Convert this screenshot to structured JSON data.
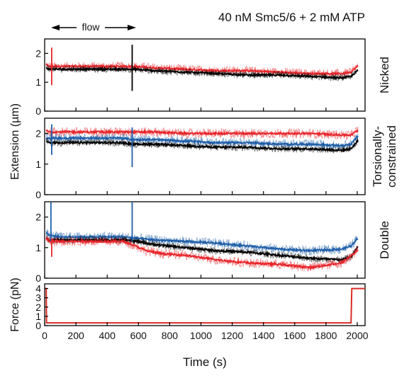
{
  "figure": {
    "title": "40 nM Smc5/6 + 2 mM ATP",
    "flow_label": "flow",
    "shared_ylabel": "Extension (µm)",
    "xlabel": "Time (s)",
    "colors": {
      "nicked": "#e8262b",
      "torsional": "#e8262b",
      "double": "#e8262b",
      "blue": "#1f5fa8",
      "black": "#000000",
      "force_line": "#d92b26",
      "axis": "#000000"
    }
  },
  "chart_data": [
    {
      "type": "line",
      "panel": "Nicked",
      "side_label": [
        "Nicked"
      ],
      "xlim": [
        0,
        2050
      ],
      "ylim": [
        0,
        2.5
      ],
      "yticks": [
        0,
        1,
        2
      ],
      "xticks": [
        0,
        200,
        400,
        600,
        800,
        1000,
        1200,
        1400,
        1600,
        1800,
        2000
      ],
      "series": [
        {
          "color": "red",
          "x": [
            10,
            30,
            100,
            300,
            500,
            560,
            700,
            900,
            1100,
            1300,
            1500,
            1700,
            1900,
            1960,
            2000
          ],
          "y": [
            1.6,
            1.55,
            1.55,
            1.55,
            1.55,
            1.55,
            1.5,
            1.45,
            1.4,
            1.4,
            1.35,
            1.3,
            1.3,
            1.35,
            1.55
          ]
        },
        {
          "color": "black",
          "x": [
            10,
            30,
            100,
            300,
            500,
            560,
            700,
            900,
            1100,
            1300,
            1500,
            1700,
            1900,
            1960,
            2000
          ],
          "y": [
            1.5,
            1.45,
            1.45,
            1.45,
            1.45,
            1.45,
            1.4,
            1.35,
            1.3,
            1.25,
            1.25,
            1.2,
            1.15,
            1.2,
            1.4
          ]
        }
      ],
      "spikes": [
        {
          "color": "red",
          "x": 45,
          "y0": 0.9,
          "y1": 2.2
        },
        {
          "color": "black",
          "x": 560,
          "y0": 0.7,
          "y1": 2.3
        }
      ]
    },
    {
      "type": "line",
      "panel": "Torsionally-constrained",
      "side_label": [
        "Torsionally-",
        "constrained"
      ],
      "xlim": [
        0,
        2050
      ],
      "ylim": [
        0,
        2.5
      ],
      "yticks": [
        0,
        1,
        2
      ],
      "xticks": [
        0,
        200,
        400,
        600,
        800,
        1000,
        1200,
        1400,
        1600,
        1800,
        2000
      ],
      "series": [
        {
          "color": "red",
          "x": [
            10,
            30,
            100,
            300,
            500,
            560,
            700,
            900,
            1100,
            1300,
            1500,
            1700,
            1900,
            1960,
            2000
          ],
          "y": [
            2.1,
            2.05,
            2.05,
            2.05,
            2.05,
            2.05,
            2.05,
            2.0,
            2.0,
            2.0,
            2.0,
            2.0,
            1.95,
            1.95,
            2.1
          ]
        },
        {
          "color": "blue",
          "x": [
            10,
            30,
            100,
            300,
            500,
            560,
            700,
            900,
            1100,
            1300,
            1500,
            1700,
            1900,
            1960,
            2000
          ],
          "y": [
            1.85,
            1.85,
            1.85,
            1.85,
            1.85,
            1.8,
            1.8,
            1.75,
            1.7,
            1.7,
            1.65,
            1.65,
            1.6,
            1.65,
            1.9
          ]
        },
        {
          "color": "black",
          "x": [
            10,
            30,
            100,
            300,
            500,
            560,
            700,
            900,
            1100,
            1300,
            1500,
            1700,
            1900,
            1960,
            2000
          ],
          "y": [
            1.75,
            1.7,
            1.7,
            1.7,
            1.7,
            1.65,
            1.65,
            1.6,
            1.55,
            1.55,
            1.5,
            1.5,
            1.45,
            1.5,
            1.75
          ]
        }
      ],
      "spikes": [
        {
          "color": "blue",
          "x": 45,
          "y0": 1.3,
          "y1": 2.3
        },
        {
          "color": "blue",
          "x": 560,
          "y0": 0.9,
          "y1": 2.2
        }
      ]
    },
    {
      "type": "line",
      "panel": "Double",
      "side_label": [
        "Double"
      ],
      "xlim": [
        0,
        2050
      ],
      "ylim": [
        0,
        2.5
      ],
      "yticks": [
        0,
        1,
        2
      ],
      "xticks": [
        0,
        200,
        400,
        600,
        800,
        1000,
        1200,
        1400,
        1600,
        1800,
        2000
      ],
      "series": [
        {
          "color": "blue",
          "x": [
            10,
            30,
            100,
            300,
            500,
            600,
            700,
            900,
            1100,
            1300,
            1500,
            1700,
            1900,
            1960,
            2000
          ],
          "y": [
            1.5,
            1.4,
            1.35,
            1.35,
            1.35,
            1.3,
            1.25,
            1.2,
            1.15,
            1.05,
            0.95,
            0.9,
            0.95,
            1.05,
            1.3
          ]
        },
        {
          "color": "black",
          "x": [
            10,
            30,
            100,
            300,
            500,
            600,
            700,
            900,
            1100,
            1300,
            1500,
            1700,
            1900,
            1960,
            2000
          ],
          "y": [
            1.3,
            1.25,
            1.25,
            1.25,
            1.25,
            1.2,
            1.1,
            1.0,
            0.9,
            0.85,
            0.75,
            0.65,
            0.6,
            0.7,
            1.0
          ]
        },
        {
          "color": "red",
          "x": [
            10,
            30,
            100,
            300,
            500,
            560,
            650,
            750,
            900,
            1100,
            1300,
            1500,
            1700,
            1900,
            2000
          ],
          "y": [
            1.3,
            1.2,
            1.2,
            1.2,
            1.2,
            1.1,
            0.9,
            0.8,
            0.75,
            0.6,
            0.5,
            0.45,
            0.35,
            0.5,
            0.9
          ]
        }
      ],
      "spikes": [
        {
          "color": "blue",
          "x": 40,
          "y0": 1.2,
          "y1": 2.6
        },
        {
          "color": "red",
          "x": 45,
          "y0": 0.7,
          "y1": 1.3
        },
        {
          "color": "blue",
          "x": 560,
          "y0": 1.2,
          "y1": 2.6
        }
      ]
    },
    {
      "type": "line",
      "panel": "Force",
      "ylabel": "Force (pN)",
      "xlabel": "Time (s)",
      "xlim": [
        0,
        2050
      ],
      "ylim": [
        0,
        4.5
      ],
      "yticks": [
        0,
        1,
        2,
        3,
        4
      ],
      "xticks": [
        0,
        200,
        400,
        600,
        800,
        1000,
        1200,
        1400,
        1600,
        1800,
        2000
      ],
      "series": [
        {
          "color": "red",
          "x": [
            0,
            12,
            12,
            30,
            30,
            1960,
            1960,
            2050
          ],
          "y": [
            4,
            4,
            0.3,
            0.3,
            4,
            4,
            0.3,
            0.3
          ],
          "force_step": true
        }
      ],
      "force_trace": {
        "x": [
          0,
          10,
          12,
          1960,
          1965,
          2050
        ],
        "y": [
          4,
          4,
          0.3,
          0.3,
          4,
          4
        ]
      }
    }
  ]
}
